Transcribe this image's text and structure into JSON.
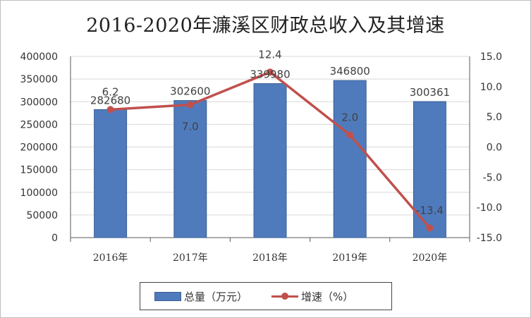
{
  "chart_data": {
    "type": "bar",
    "title": "2016-2020年濂溪区财政总收入及其增速",
    "categories": [
      "2016年",
      "2017年",
      "2018年",
      "2019年",
      "2020年"
    ],
    "series": [
      {
        "name": "总量（万元）",
        "type": "bar",
        "axis": "left",
        "values": [
          282680,
          302600,
          339980,
          346800,
          300361
        ],
        "color": "#4f7bbd"
      },
      {
        "name": "增速（%）",
        "type": "line",
        "axis": "right",
        "values": [
          6.2,
          7.0,
          12.4,
          2.0,
          -13.4
        ],
        "color": "#c0504d"
      }
    ],
    "left_axis": {
      "ylim": [
        0,
        400000
      ],
      "ticks": [
        "0",
        "50000",
        "100000",
        "150000",
        "200000",
        "250000",
        "300000",
        "350000",
        "400000"
      ]
    },
    "right_axis": {
      "ylim": [
        -15,
        15
      ],
      "ticks": [
        "-15.0",
        "-10.0",
        "-5.0",
        "0.0",
        "5.0",
        "10.0",
        "15.0"
      ]
    },
    "bar_labels": [
      "282680",
      "302600",
      "339980",
      "346800",
      "300361"
    ],
    "line_labels": [
      "6.2",
      "7.0",
      "12.4",
      "2.0",
      "-13.4"
    ],
    "grid": true,
    "legend_position": "bottom"
  }
}
